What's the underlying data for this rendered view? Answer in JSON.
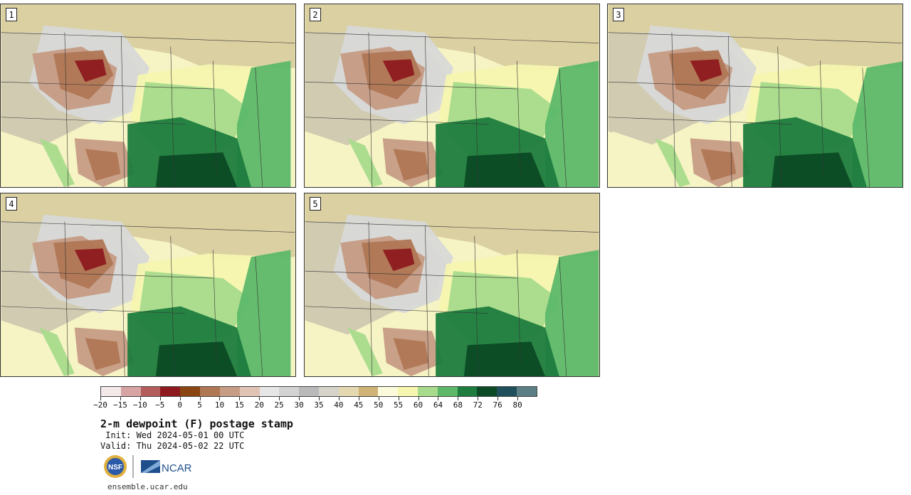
{
  "panels": [
    {
      "label": "1"
    },
    {
      "label": "2"
    },
    {
      "label": "3"
    },
    {
      "label": "4"
    },
    {
      "label": "5"
    }
  ],
  "colorbar": {
    "colors": [
      "#f4e9e9",
      "#d7a3a3",
      "#b35c5c",
      "#8e1a1f",
      "#8b4513",
      "#b07755",
      "#c69c85",
      "#e0c3b3",
      "#e6e6e6",
      "#d3d3d3",
      "#b9b9b9",
      "#d6d4ca",
      "#e3d8b0",
      "#cfb276",
      "#fbfbdc",
      "#f6f6b0",
      "#a8db8c",
      "#5db86a",
      "#1d7c3e",
      "#0b4a25",
      "#1f4f5a",
      "#5b7f85"
    ],
    "tick_labels": [
      "−20",
      "−15",
      "−10",
      "−5",
      "0",
      "5",
      "10",
      "15",
      "20",
      "25",
      "30",
      "35",
      "40",
      "45",
      "50",
      "55",
      "60",
      "64",
      "68",
      "72",
      "76",
      "80"
    ]
  },
  "title": "2-m dewpoint (F) postage stamp",
  "init": " Init: Wed 2024-05-01 00 UTC",
  "valid": "Valid: Thu 2024-05-02 22 UTC",
  "logos": {
    "nsf": "NSF",
    "ncar": "NCAR"
  },
  "url": "ensemble.ucar.edu"
}
